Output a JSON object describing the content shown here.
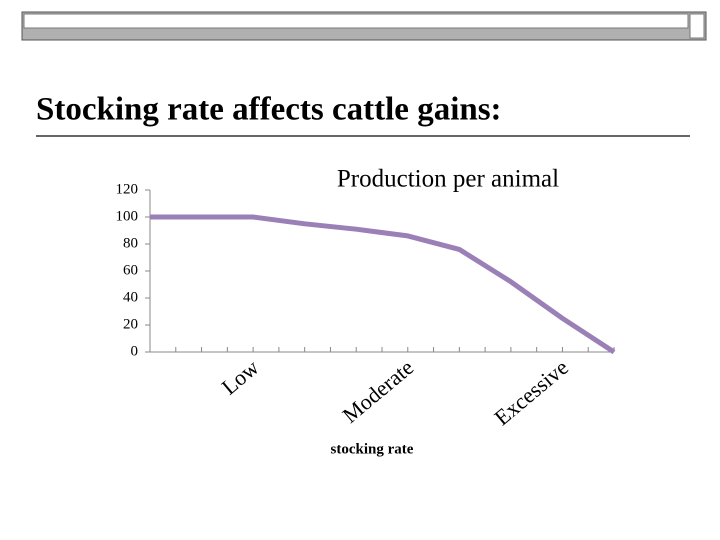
{
  "slide_title": "Stocking rate affects cattle gains:",
  "chart_data": {
    "type": "line",
    "title": "Production per animal",
    "x_label": "stocking rate",
    "categories": [
      null,
      null,
      "Low",
      null,
      null,
      "Moderate",
      null,
      null,
      "Excessive",
      null
    ],
    "series": [
      {
        "color": "#9b80b8",
        "values": [
          100,
          100,
          100,
          95,
          91,
          86,
          76,
          52,
          25,
          0
        ]
      }
    ],
    "ylim": [
      0,
      120
    ],
    "yticks": [
      0,
      20,
      40,
      60,
      80,
      100,
      120
    ]
  }
}
